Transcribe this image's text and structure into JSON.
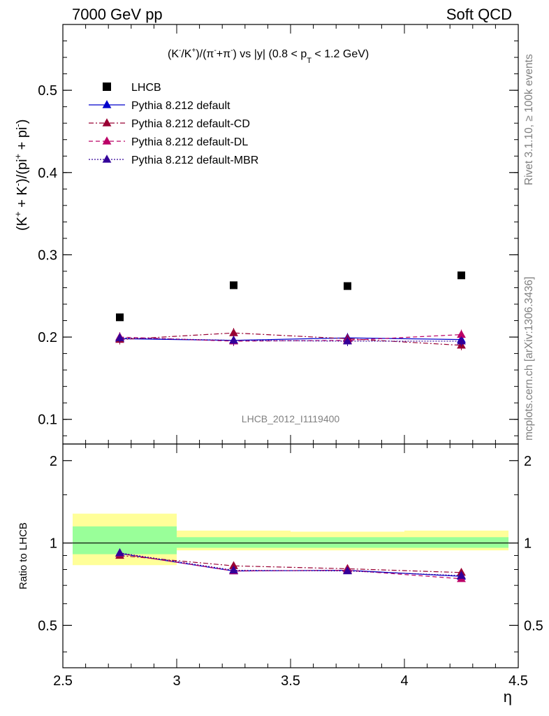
{
  "header": {
    "left": "7000 GeV pp",
    "right": "Soft QCD"
  },
  "side_labels": {
    "rivet": "Rivet 3.1.10, ≥ 100k events",
    "mcplots": "mcplots.cern.ch [arXiv:1306.3436]"
  },
  "chart_data": [
    {
      "type": "scatter",
      "title": "(K⁻/K⁺)/(π⁻+π⁻) vs |y| (0.8 < p_T < 1.2 GeV)",
      "title_parts": {
        "a": "(K",
        "a_sup": "-",
        "b": "/K",
        "b_sup": "+",
        "c": ")/(π",
        "c_sup": "-",
        "d": "+π",
        "d_sup": "-",
        "e": ") vs |y| (0.8 < p",
        "e_sub": "T",
        "f": " < 1.2 GeV)"
      },
      "ylabel_parts": {
        "a": "(K",
        "a_sup": "+",
        "b": " + K",
        "b_sup": "-",
        "c": ")/(pi",
        "c_sup": "+",
        "d": " + pi",
        "d_sup": "-",
        "e": ")"
      },
      "watermark": "LHCB_2012_I1119400",
      "xlim": [
        2.5,
        4.5
      ],
      "ylim": [
        0.07,
        0.58
      ],
      "y_ticks": [
        0.1,
        0.2,
        0.3,
        0.4,
        0.5
      ],
      "y_tick_labels": [
        "0.1",
        "0.2",
        "0.3",
        "0.4",
        "0.5"
      ],
      "legend_position": "top-left",
      "x": [
        2.75,
        3.25,
        3.75,
        4.25
      ],
      "series": [
        {
          "name": "LHCB",
          "values": [
            0.224,
            0.263,
            0.262,
            0.275
          ],
          "color": "#000000",
          "marker": "square",
          "line": "none"
        },
        {
          "name": "Pythia 8.212 default",
          "values": [
            0.198,
            0.196,
            0.199,
            0.197
          ],
          "color": "#0000cc",
          "marker": "triangle",
          "line": "solid"
        },
        {
          "name": "Pythia 8.212 default-CD",
          "values": [
            0.197,
            0.205,
            0.198,
            0.19
          ],
          "color": "#990033",
          "marker": "triangle",
          "line": "dashdot"
        },
        {
          "name": "Pythia 8.212 default-DL",
          "values": [
            0.2,
            0.195,
            0.196,
            0.203
          ],
          "color": "#bb0066",
          "marker": "triangle",
          "line": "dashed"
        },
        {
          "name": "Pythia 8.212 default-MBR",
          "values": [
            0.199,
            0.196,
            0.195,
            0.195
          ],
          "color": "#330099",
          "marker": "triangle",
          "line": "dotted"
        }
      ]
    },
    {
      "type": "line",
      "ylabel": "Ratio to LHCB",
      "xlabel": "η",
      "xlim": [
        2.5,
        4.5
      ],
      "ylim": [
        0.35,
        2.3
      ],
      "x_ticks": [
        2.5,
        3,
        3.5,
        4,
        4.5
      ],
      "x_tick_labels": [
        "2.5",
        "3",
        "3.5",
        "4",
        "4.5"
      ],
      "y_ticks": [
        0.5,
        1,
        2
      ],
      "y_tick_labels": [
        "0.5",
        "1",
        "2"
      ],
      "bands": {
        "bins": [
          [
            2.5,
            3.0
          ],
          [
            3.0,
            3.5
          ],
          [
            3.5,
            4.0
          ],
          [
            4.0,
            4.5
          ]
        ],
        "stat_low": [
          0.91,
          0.96,
          0.96,
          0.96
        ],
        "stat_high": [
          1.15,
          1.05,
          1.05,
          1.05
        ],
        "total_low": [
          0.83,
          0.94,
          0.94,
          0.94
        ],
        "total_high": [
          1.28,
          1.11,
          1.1,
          1.11
        ],
        "stat_color": "#99ff99",
        "total_color": "#ffff99"
      },
      "x": [
        2.75,
        3.25,
        3.75,
        4.25
      ],
      "series": [
        {
          "name": "Pythia 8.212 default",
          "values": [
            0.915,
            0.79,
            0.795,
            0.755
          ],
          "color": "#0000cc",
          "line": "solid"
        },
        {
          "name": "Pythia 8.212 default-CD",
          "values": [
            0.9,
            0.825,
            0.805,
            0.78
          ],
          "color": "#990033",
          "line": "dashdot"
        },
        {
          "name": "Pythia 8.212 default-DL",
          "values": [
            0.915,
            0.79,
            0.795,
            0.74
          ],
          "color": "#bb0066",
          "line": "dashed"
        },
        {
          "name": "Pythia 8.212 default-MBR",
          "values": [
            0.92,
            0.795,
            0.79,
            0.76
          ],
          "color": "#330099",
          "line": "dotted"
        }
      ]
    }
  ]
}
